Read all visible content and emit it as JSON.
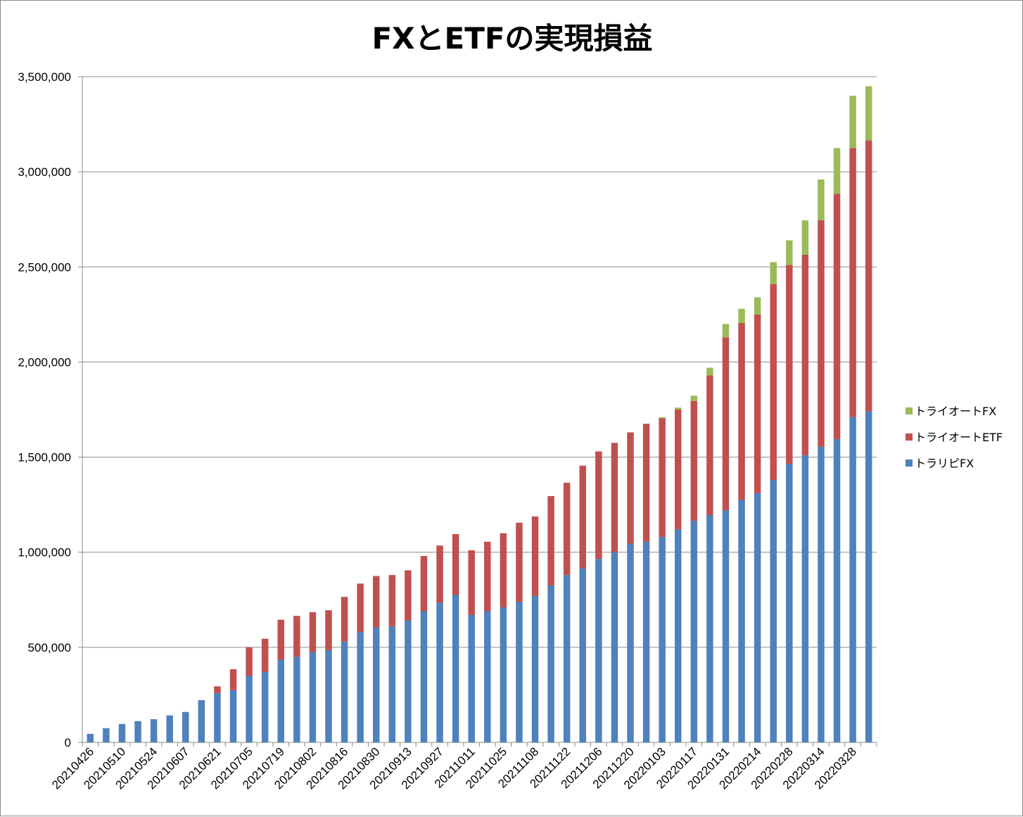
{
  "chart_data": {
    "type": "bar",
    "stacked": true,
    "title": "FXとETFの実現損益",
    "xlabel": "",
    "ylabel": "",
    "ylim": [
      0,
      3500000
    ],
    "yticks": [
      0,
      500000,
      1000000,
      1500000,
      2000000,
      2500000,
      3000000,
      3500000
    ],
    "ytick_labels": [
      "0",
      "500,000",
      "1,000,000",
      "1,500,000",
      "2,000,000",
      "2,500,000",
      "3,000,000",
      "3,500,000"
    ],
    "grid": "horizontal",
    "legend_position": "right",
    "categories": [
      "20210426",
      "20210503",
      "20210510",
      "20210517",
      "20210524",
      "20210531",
      "20210607",
      "20210614",
      "20210621",
      "20210628",
      "20210705",
      "20210712",
      "20210719",
      "20210726",
      "20210802",
      "20210809",
      "20210816",
      "20210823",
      "20210830",
      "20210906",
      "20210913",
      "20210920",
      "20210927",
      "20211004",
      "20211011",
      "20211018",
      "20211025",
      "20211101",
      "20211108",
      "20211115",
      "20211122",
      "20211129",
      "20211206",
      "20211213",
      "20211220",
      "20211227",
      "20220103",
      "20220110",
      "20220117",
      "20220124",
      "20220131",
      "20220207",
      "20220214",
      "20220221",
      "20220228",
      "20220307",
      "20220314",
      "20220321",
      "20220328",
      "20220404"
    ],
    "xtick_labels": [
      "20210426",
      "20210510",
      "20210524",
      "20210607",
      "20210621",
      "20210705",
      "20210719",
      "20210802",
      "20210816",
      "20210830",
      "20210913",
      "20210927",
      "20211011",
      "20211025",
      "20211108",
      "20211122",
      "20211206",
      "20211220",
      "20220103",
      "20220117",
      "20220131",
      "20220214",
      "20220228",
      "20220314",
      "20220328"
    ],
    "series": [
      {
        "name": "トラリピFX",
        "color": "#4f81bd",
        "values": [
          45000,
          75000,
          97000,
          112000,
          122000,
          142000,
          160000,
          222000,
          260000,
          275000,
          350000,
          370000,
          435000,
          450000,
          475000,
          485000,
          530000,
          580000,
          605000,
          610000,
          640000,
          690000,
          735000,
          775000,
          670000,
          690000,
          710000,
          740000,
          770000,
          825000,
          880000,
          915000,
          965000,
          1000000,
          1045000,
          1055000,
          1080000,
          1120000,
          1165000,
          1195000,
          1220000,
          1275000,
          1310000,
          1380000,
          1465000,
          1510000,
          1555000,
          1595000,
          1710000,
          1740000
        ]
      },
      {
        "name": "トライオートETF",
        "color": "#c0504d",
        "values": [
          0,
          0,
          0,
          0,
          0,
          0,
          0,
          0,
          35000,
          110000,
          150000,
          175000,
          210000,
          215000,
          210000,
          210000,
          235000,
          255000,
          270000,
          270000,
          265000,
          290000,
          300000,
          320000,
          340000,
          365000,
          390000,
          415000,
          418000,
          470000,
          485000,
          540000,
          565000,
          575000,
          585000,
          620000,
          625000,
          630000,
          630000,
          735000,
          910000,
          930000,
          940000,
          1030000,
          1045000,
          1055000,
          1190000,
          1290000,
          1415000,
          1425000
        ]
      },
      {
        "name": "トライオートFX",
        "color": "#9bbb59",
        "values": [
          0,
          0,
          0,
          0,
          0,
          0,
          0,
          0,
          0,
          0,
          0,
          0,
          0,
          0,
          0,
          0,
          0,
          0,
          0,
          0,
          0,
          0,
          0,
          0,
          0,
          0,
          0,
          0,
          0,
          0,
          0,
          0,
          0,
          0,
          0,
          0,
          5000,
          10000,
          28000,
          40000,
          70000,
          75000,
          90000,
          115000,
          130000,
          180000,
          215000,
          240000,
          275000,
          285000
        ]
      }
    ],
    "legend_order": [
      "トライオートFX",
      "トライオートETF",
      "トラリピFX"
    ]
  }
}
